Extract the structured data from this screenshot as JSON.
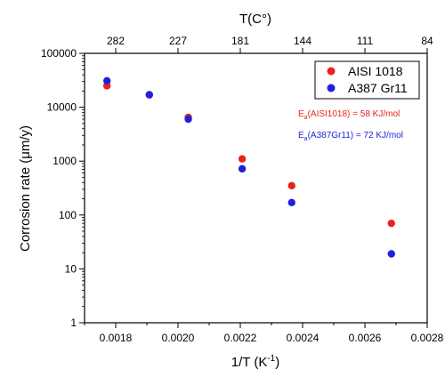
{
  "chart_data": {
    "type": "scatter",
    "xlabel": "1/T (K",
    "xlabel_sup": "-1",
    "xlabel_suffix": ")",
    "ylabel": "Corrosion rate (μm/y)",
    "top_axis_label": "T(C°)",
    "xlim": [
      0.0017,
      0.0028
    ],
    "ylim": [
      1,
      100000
    ],
    "yscale": "log",
    "grid": false,
    "legend_position": "top-right",
    "x_ticks": [
      "0.0018",
      "0.0020",
      "0.0022",
      "0.0024",
      "0.0026",
      "0.0028"
    ],
    "y_ticks": [
      "1",
      "10",
      "100",
      "1000",
      "10000",
      "100000"
    ],
    "top_ticks": [
      {
        "label": "282",
        "x": 0.0018
      },
      {
        "label": "227",
        "x": 0.002
      },
      {
        "label": "181",
        "x": 0.0022
      },
      {
        "label": "144",
        "x": 0.0024
      },
      {
        "label": "111",
        "x": 0.0026
      },
      {
        "label": "84",
        "x": 0.0028
      }
    ],
    "series": [
      {
        "name": "AISI 1018",
        "color": "#e8221c",
        "points": [
          {
            "x": 0.001772,
            "y": 25000
          },
          {
            "x": 0.001908,
            "y": 17000
          },
          {
            "x": 0.002033,
            "y": 6500
          },
          {
            "x": 0.002206,
            "y": 1100
          },
          {
            "x": 0.002365,
            "y": 350
          },
          {
            "x": 0.002685,
            "y": 70
          }
        ]
      },
      {
        "name": "A387 Gr11",
        "color": "#1f1fdc",
        "points": [
          {
            "x": 0.001772,
            "y": 31000
          },
          {
            "x": 0.001908,
            "y": 17000
          },
          {
            "x": 0.002033,
            "y": 6000
          },
          {
            "x": 0.002206,
            "y": 720
          },
          {
            "x": 0.002365,
            "y": 170
          },
          {
            "x": 0.002685,
            "y": 19
          }
        ]
      }
    ],
    "annotations": [
      {
        "prefix": "E",
        "sub": "a",
        "text": "(AISI1018) = 58 KJ/mol",
        "color": "#e8221c"
      },
      {
        "prefix": "E",
        "sub": "a",
        "text": "(A387Gr11) = 72 KJ/mol",
        "color": "#1f1fdc"
      }
    ]
  }
}
